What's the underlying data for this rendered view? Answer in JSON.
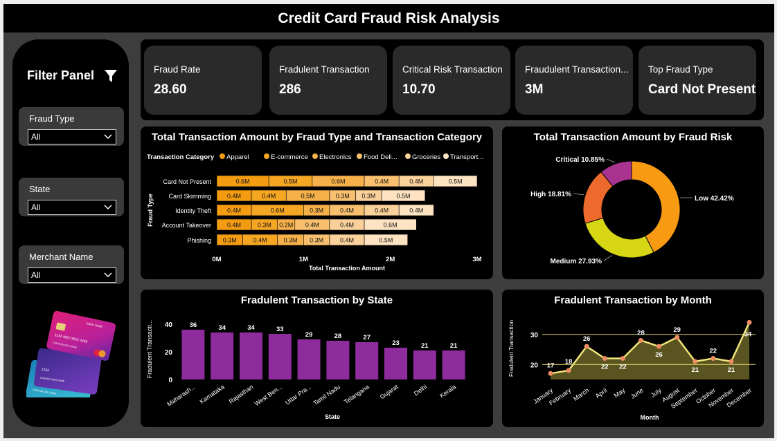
{
  "header": {
    "title": "Credit Card Fraud Risk Analysis"
  },
  "filter_panel": {
    "title": "Filter Panel",
    "slicers": [
      {
        "label": "Fraud Type",
        "value": "All"
      },
      {
        "label": "State",
        "value": "All"
      },
      {
        "label": "Merchant Name",
        "value": "All"
      }
    ],
    "card_image": {
      "front_card": {
        "bank": "BANK NAME",
        "number": "1234 4567 8912 3456",
        "holder": "CARDHOLDER NAME"
      },
      "back_cards": [
        {
          "number": "1234",
          "holder": "CARDHOLDER NAME"
        },
        {
          "number": "1234",
          "holder": "CARDHOLDER NAME"
        }
      ]
    }
  },
  "kpis": [
    {
      "label": "Fraud Rate",
      "value": "28.60"
    },
    {
      "label": "Fradulent Transaction",
      "value": "286"
    },
    {
      "label": "Critical Risk Transaction",
      "value": "10.70"
    },
    {
      "label": "Fraudulent Transaction...",
      "value": "3M"
    },
    {
      "label": "Top Fraud Type",
      "value": "Card Not Present"
    }
  ],
  "chart_data": [
    {
      "type": "bar",
      "orientation": "horizontal-stacked",
      "title": "Total Transaction Amount by Fraud Type and Transaction Category",
      "legend_title": "Transaction Category",
      "legend_labels": [
        "Apparel",
        "E-commerce",
        "Electronics",
        "Food Deli...",
        "Groceries",
        "Transport..."
      ],
      "categories": [
        "Card Not Present",
        "Card Skimming",
        "Identity Theft",
        "Account Takeover",
        "Phishing"
      ],
      "series": [
        {
          "name": "Apparel",
          "values": [
            0.6,
            0.4,
            0.4,
            0.4,
            0.3
          ],
          "labels": [
            "0.6M",
            "0.4M",
            "0.4M",
            "0.4M",
            "0.3M"
          ],
          "color": "#f39c12"
        },
        {
          "name": "E-commerce",
          "values": [
            0.5,
            0.4,
            0.6,
            0.3,
            0.4
          ],
          "labels": [
            "0.5M",
            "0.4M",
            "0.6M",
            "0.3M",
            "0.4M"
          ],
          "color": "#f5a623"
        },
        {
          "name": "Electronics",
          "values": [
            0.6,
            0.5,
            0.3,
            0.2,
            0.3
          ],
          "labels": [
            "0.6M",
            "0.5M",
            "0.3M",
            "0.2M",
            "0.3M"
          ],
          "color": "#f6b04a"
        },
        {
          "name": "Food Delivery",
          "values": [
            0.4,
            0.3,
            0.4,
            0.4,
            0.3
          ],
          "labels": [
            "0.4M",
            "0.3M",
            "0.4M",
            "0.4M",
            "0.3M"
          ],
          "color": "#f8c06e"
        },
        {
          "name": "Groceries",
          "values": [
            0.4,
            0.3,
            0.4,
            0.4,
            0.4
          ],
          "labels": [
            "0.4M",
            "0.3M",
            "0.4M",
            "0.4M",
            "0.4M"
          ],
          "color": "#fad19a"
        },
        {
          "name": "Transport",
          "values": [
            0.5,
            0.5,
            0.4,
            0.6,
            0.5
          ],
          "labels": [
            "0.5M",
            "0.5M",
            "0.4M",
            "0.6M",
            "0.5M"
          ],
          "color": "#fde3c1"
        }
      ],
      "xlim": [
        0,
        3
      ],
      "x_ticks": [
        "0M",
        "1M",
        "2M",
        "3M"
      ],
      "xlabel": "Total Transaction Amount",
      "ylabel": "Fraud Type"
    },
    {
      "type": "pie",
      "subtype": "donut",
      "title": "Total Transaction Amount by Fraud Risk",
      "slices": [
        {
          "name": "Low",
          "value": 42.42,
          "label": "Low 42.42%",
          "color": "#f89b12"
        },
        {
          "name": "Medium",
          "value": 27.93,
          "label": "Medium 27.93%",
          "color": "#d6d614"
        },
        {
          "name": "High",
          "value": 18.81,
          "label": "High 18.81%",
          "color": "#ee6a2c"
        },
        {
          "name": "Critical",
          "value": 10.85,
          "label": "Critical 10.85%",
          "color": "#a8348f"
        }
      ]
    },
    {
      "type": "bar",
      "title": "Fradulent Transaction by State",
      "categories": [
        "Maharash...",
        "Karnataka",
        "Rajasthan",
        "West Ben...",
        "Uttar Pra...",
        "Tamil Nadu",
        "Telangana",
        "Gujarat",
        "Delhi",
        "Kerala"
      ],
      "values": [
        36,
        34,
        34,
        33,
        29,
        28,
        27,
        23,
        21,
        21
      ],
      "color": "#8e2c9e",
      "ylim": [
        0,
        45
      ],
      "y_ticks": [
        0,
        20,
        40
      ],
      "xlabel": "State",
      "ylabel": "Fradulent Transacti..."
    },
    {
      "type": "area",
      "title": "Fradulent Transaction by Month",
      "categories": [
        "January",
        "February",
        "March",
        "April",
        "May",
        "June",
        "July",
        "August",
        "September",
        "October",
        "November",
        "December"
      ],
      "values": [
        17,
        18,
        26,
        22,
        22,
        28,
        26,
        29,
        21,
        22,
        21,
        34
      ],
      "line_color": "#f0e67a",
      "fill_color": "#5a5420",
      "marker_color": "#ee8c62",
      "ylim": [
        15,
        35
      ],
      "y_ticks": [
        20,
        30
      ],
      "reference_lines": [
        20,
        30
      ],
      "xlabel": "Month",
      "ylabel": "Fradulent Transaction"
    }
  ]
}
